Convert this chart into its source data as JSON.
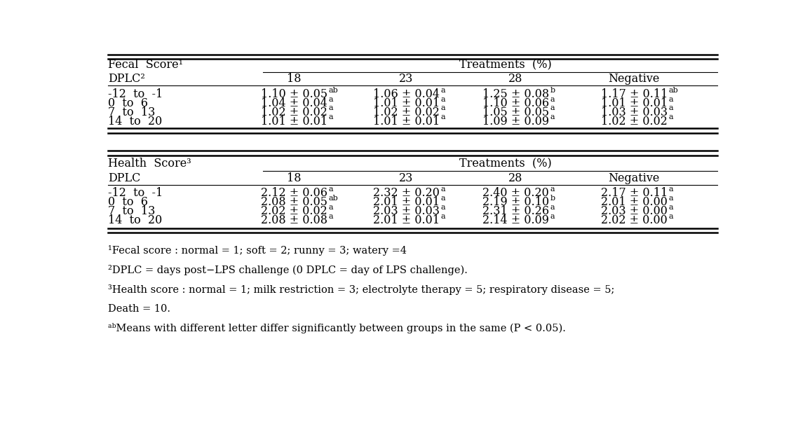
{
  "fecal_title": "Fecal  Score¹",
  "health_title": "Health  Score³",
  "treatments_label": "Treatments  (%)",
  "dplc_label1": "DPLC²",
  "dplc_label2": "DPLC",
  "col_headers": [
    "18",
    "23",
    "28",
    "Negative"
  ],
  "row_labels": [
    "-12  to  -1",
    "0  to  6",
    "7  to  13",
    "14  to  20"
  ],
  "fecal_data": [
    [
      "1.10 ± 0.05",
      "ab",
      "1.06 ± 0.04",
      "a",
      "1.25 ± 0.08",
      "b",
      "1.17 ± 0.11",
      "ab"
    ],
    [
      "1.04 ± 0.04",
      "a",
      "1.01 ± 0.01",
      "a",
      "1.10 ± 0.06",
      "a",
      "1.01 ± 0.01",
      "a"
    ],
    [
      "1.02 ± 0.02",
      "a",
      "1.02 ± 0.02",
      "a",
      "1.05 ± 0.05",
      "a",
      "1.03 ± 0.03",
      "a"
    ],
    [
      "1.01 ± 0.01",
      "a",
      "1.01 ± 0.01",
      "a",
      "1.09 ± 0.09",
      "a",
      "1.02 ± 0.02",
      "a"
    ]
  ],
  "health_data": [
    [
      "2.12 ± 0.06",
      "a",
      "2.32 ± 0.20",
      "a",
      "2.40 ± 0.20",
      "a",
      "2.17 ± 0.11",
      "a"
    ],
    [
      "2.08 ± 0.05",
      "ab",
      "2.01 ± 0.01",
      "a",
      "2.19 ± 0.10",
      "b",
      "2.01 ± 0.00",
      "a"
    ],
    [
      "2.02 ± 0.02",
      "a",
      "2.03 ± 0.03",
      "a",
      "2.31 ± 0.26",
      "a",
      "2.03 ± 0.00",
      "a"
    ],
    [
      "2.08 ± 0.08",
      "a",
      "2.01 ± 0.01",
      "a",
      "2.14 ± 0.09",
      "a",
      "2.02 ± 0.00",
      "a"
    ]
  ],
  "footnotes": [
    "¹Fecal score : normal = 1; soft = 2; runny = 3; watery =4",
    "²DPLC = days post−LPS challenge (0 DPLC = day of LPS challenge).",
    "³Health score : normal = 1; milk restriction = 3; electrolyte therapy = 5; respiratory disease = 5;",
    "Death = 10.",
    "ᵃᵇMeans with different letter differ significantly between groups in the same (P < 0.05)."
  ],
  "bg_color": "#ffffff",
  "text_color": "#000000",
  "font_size": 11.5,
  "sup_font_size": 8.0,
  "font_family": "DejaVu Serif",
  "footnote_font_size": 10.5
}
